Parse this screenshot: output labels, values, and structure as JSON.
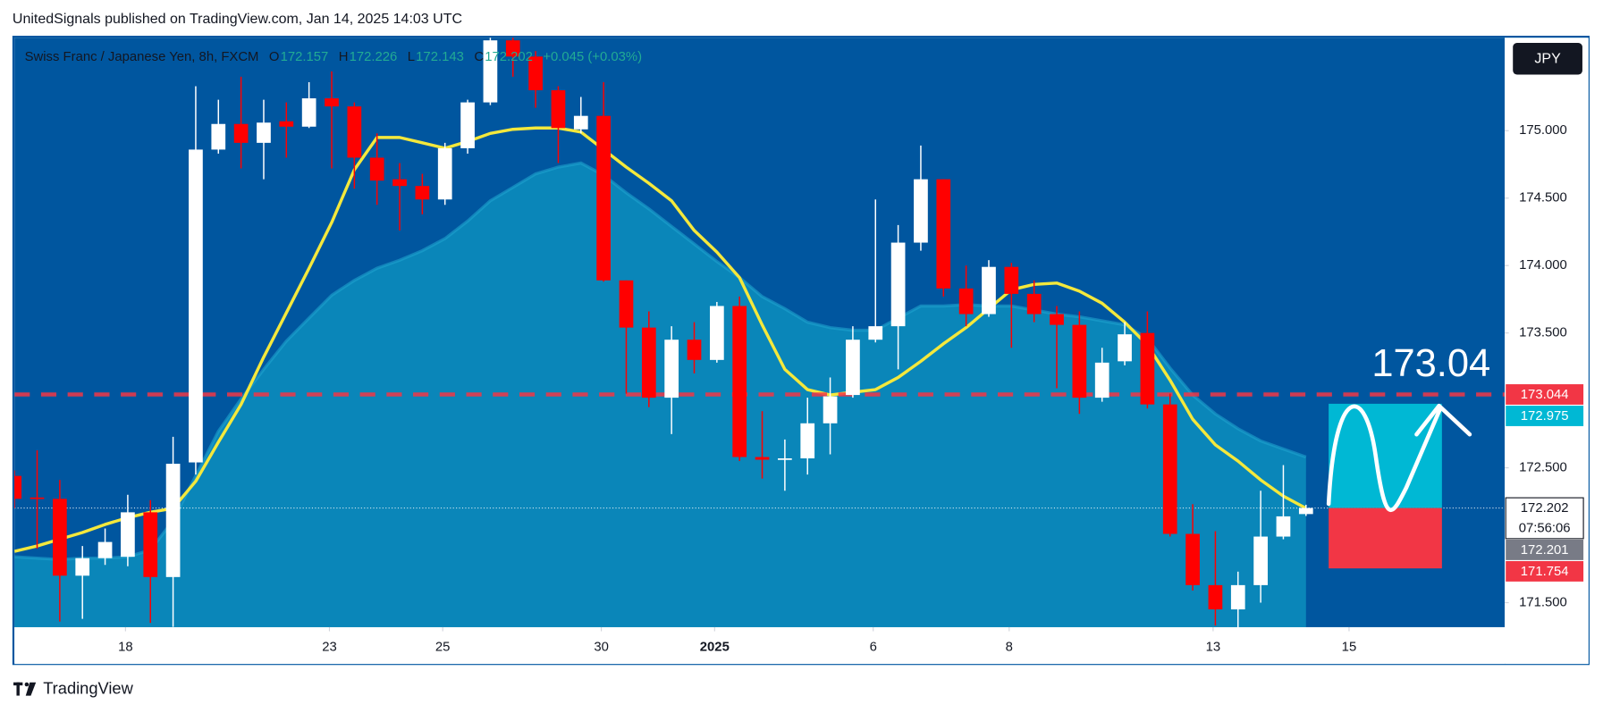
{
  "header": "UnitedSignals published on TradingView.com, Jan 14, 2025 14:03 UTC",
  "footer": "TradingView",
  "chart_data": {
    "type": "candlestick",
    "title": "Swiss Franc / Japanese Yen, 8h, FXCM",
    "legend": [
      {
        "key": "O",
        "value": 172.157
      },
      {
        "key": "H",
        "value": 172.226
      },
      {
        "key": "L",
        "value": 172.143
      },
      {
        "key": "C",
        "value": 172.202
      }
    ],
    "change_label": "+0.045 (+0.03%)",
    "currency": "JPY",
    "x": [
      0,
      1,
      2,
      3,
      4,
      5,
      6,
      7,
      8,
      9,
      10,
      11,
      12,
      13,
      14,
      15,
      16,
      17,
      18,
      19,
      20,
      21,
      22,
      23,
      24,
      25,
      26,
      27,
      28,
      29,
      30,
      31,
      32,
      33,
      34,
      35,
      36,
      37,
      38,
      39,
      40,
      41,
      42,
      43,
      44,
      45,
      46,
      47,
      48,
      49,
      50,
      51,
      52,
      53,
      54,
      55,
      56,
      57
    ],
    "open": [
      172.44,
      172.28,
      172.27,
      171.7,
      171.83,
      171.84,
      172.17,
      171.69,
      172.54,
      174.86,
      175.05,
      174.91,
      175.07,
      175.03,
      175.24,
      175.18,
      174.8,
      174.64,
      174.59,
      174.49,
      174.87,
      175.21,
      175.67,
      175.55,
      175.3,
      175.01,
      175.11,
      173.89,
      173.54,
      173.02,
      173.45,
      173.3,
      173.7,
      172.58,
      172.56,
      172.57,
      172.83,
      173.04,
      173.45,
      173.55,
      174.17,
      174.64,
      173.83,
      173.64,
      173.99,
      173.79,
      173.64,
      173.56,
      173.02,
      173.29,
      173.5,
      172.97,
      172.01,
      171.63,
      171.45,
      171.63,
      171.99,
      172.157
    ],
    "high": [
      172.48,
      172.63,
      172.41,
      171.92,
      172.05,
      172.3,
      172.26,
      172.73,
      175.33,
      175.23,
      175.4,
      175.23,
      175.21,
      175.36,
      175.44,
      175.21,
      174.98,
      174.76,
      174.68,
      174.91,
      175.23,
      175.69,
      175.69,
      175.59,
      175.33,
      175.25,
      175.36,
      173.89,
      173.66,
      173.55,
      173.58,
      173.73,
      173.77,
      172.92,
      172.71,
      173.02,
      173.17,
      173.55,
      174.49,
      174.3,
      174.89,
      174.64,
      174.0,
      174.04,
      174.02,
      173.89,
      173.7,
      173.66,
      173.39,
      173.58,
      173.66,
      173.05,
      172.23,
      172.03,
      171.73,
      172.33,
      172.52,
      172.226
    ],
    "low": [
      172.2,
      171.9,
      171.36,
      171.38,
      171.78,
      171.77,
      171.35,
      171.32,
      172.45,
      174.83,
      174.72,
      174.64,
      174.8,
      175.02,
      174.72,
      174.57,
      174.45,
      174.26,
      174.38,
      174.45,
      174.83,
      175.19,
      175.4,
      175.17,
      174.76,
      174.98,
      173.88,
      173.05,
      172.95,
      172.75,
      173.2,
      173.28,
      172.55,
      172.42,
      172.33,
      172.45,
      172.6,
      173.02,
      173.43,
      173.23,
      174.11,
      173.77,
      173.55,
      173.62,
      173.39,
      173.58,
      173.09,
      172.9,
      172.99,
      173.26,
      172.94,
      171.99,
      171.59,
      171.33,
      171.31,
      171.5,
      171.97,
      172.143
    ],
    "close": [
      172.27,
      172.27,
      171.7,
      171.83,
      171.95,
      172.17,
      171.69,
      172.53,
      174.86,
      175.05,
      174.91,
      175.06,
      175.03,
      175.24,
      175.18,
      174.8,
      174.63,
      174.59,
      174.49,
      174.87,
      175.21,
      175.67,
      175.55,
      175.3,
      175.02,
      175.11,
      173.89,
      173.54,
      173.02,
      173.45,
      173.3,
      173.7,
      172.58,
      172.56,
      172.57,
      172.83,
      173.03,
      173.45,
      173.55,
      174.17,
      174.64,
      173.83,
      173.64,
      173.99,
      173.79,
      173.64,
      173.56,
      173.02,
      173.28,
      173.49,
      172.97,
      172.01,
      171.63,
      171.45,
      171.63,
      171.99,
      172.14,
      172.202
    ],
    "up_color": "#ffffff",
    "down_color": "#ff0000",
    "overlays": [
      {
        "kind": "area",
        "color": "#0a86b9",
        "edge_color": "#1ea3cf",
        "values": [
          171.84,
          171.83,
          171.82,
          171.83,
          171.83,
          171.84,
          171.89,
          172.11,
          172.44,
          172.77,
          173.01,
          173.23,
          173.44,
          173.61,
          173.78,
          173.89,
          173.98,
          174.04,
          174.11,
          174.2,
          174.33,
          174.48,
          174.58,
          174.68,
          174.73,
          174.76,
          174.67,
          174.54,
          174.42,
          174.29,
          174.16,
          174.03,
          173.91,
          173.77,
          173.68,
          173.58,
          173.54,
          173.52,
          173.52,
          173.61,
          173.7,
          173.7,
          173.71,
          173.7,
          173.7,
          173.67,
          173.64,
          173.62,
          173.59,
          173.56,
          173.46,
          173.24,
          173.04,
          172.9,
          172.79,
          172.7,
          172.64,
          172.58
        ]
      },
      {
        "kind": "line",
        "color": "#f4e83c",
        "values": [
          171.88,
          171.92,
          171.97,
          172.02,
          172.08,
          172.13,
          172.17,
          172.2,
          172.4,
          172.69,
          172.97,
          173.32,
          173.65,
          173.98,
          174.32,
          174.71,
          174.95,
          174.95,
          174.91,
          174.87,
          174.92,
          174.98,
          175.01,
          175.02,
          175.02,
          174.99,
          174.86,
          174.73,
          174.61,
          174.48,
          174.26,
          174.1,
          173.91,
          173.56,
          173.23,
          173.08,
          173.04,
          173.06,
          173.08,
          173.17,
          173.29,
          173.42,
          173.54,
          173.68,
          173.82,
          173.86,
          173.87,
          173.81,
          173.72,
          173.58,
          173.41,
          173.15,
          172.86,
          172.67,
          172.55,
          172.41,
          172.29,
          172.2
        ]
      }
    ],
    "xlim": [
      0,
      65.77
    ],
    "xticks": [
      {
        "value": 4.9,
        "label": "18"
      },
      {
        "value": 13.9,
        "label": "23"
      },
      {
        "value": 18.9,
        "label": "25"
      },
      {
        "value": 25.9,
        "label": "30"
      },
      {
        "value": 30.9,
        "label": "2025"
      },
      {
        "value": 37.9,
        "label": "6"
      },
      {
        "value": 43.9,
        "label": "8"
      },
      {
        "value": 52.9,
        "label": "13"
      },
      {
        "value": 58.9,
        "label": "15"
      }
    ],
    "ylim": [
      171.318,
      175.689
    ],
    "yticks": [
      {
        "value": 175,
        "label": "175.000"
      },
      {
        "value": 174.5,
        "label": "174.500"
      },
      {
        "value": 174,
        "label": "174.000"
      },
      {
        "value": 173.5,
        "label": "173.500"
      },
      {
        "value": 172.5,
        "label": "172.500"
      },
      {
        "value": 171.5,
        "label": "171.500"
      }
    ],
    "price_labels": [
      {
        "value": 173.044,
        "color": "#f23645",
        "text_color": "#ffffff",
        "line": "dashed"
      },
      {
        "value": 172.975,
        "color": "#00b8d4",
        "text_color": "#ffffff"
      },
      {
        "value": 172.202,
        "color": "#ffffff",
        "text_color": "#131722",
        "line": "dotted",
        "countdown": "07:56:06"
      },
      {
        "value": 172.201,
        "color": "#787b86",
        "text_color": "#ffffff"
      },
      {
        "value": 171.754,
        "color": "#f23645",
        "text_color": "#ffffff"
      }
    ],
    "position": {
      "x_start": 58,
      "x_end": 63,
      "entry": 172.202,
      "target": 172.975,
      "stop": 171.754,
      "target_color": "#00b8d4",
      "stop_color": "#f23645"
    },
    "annotation": "173.04"
  }
}
